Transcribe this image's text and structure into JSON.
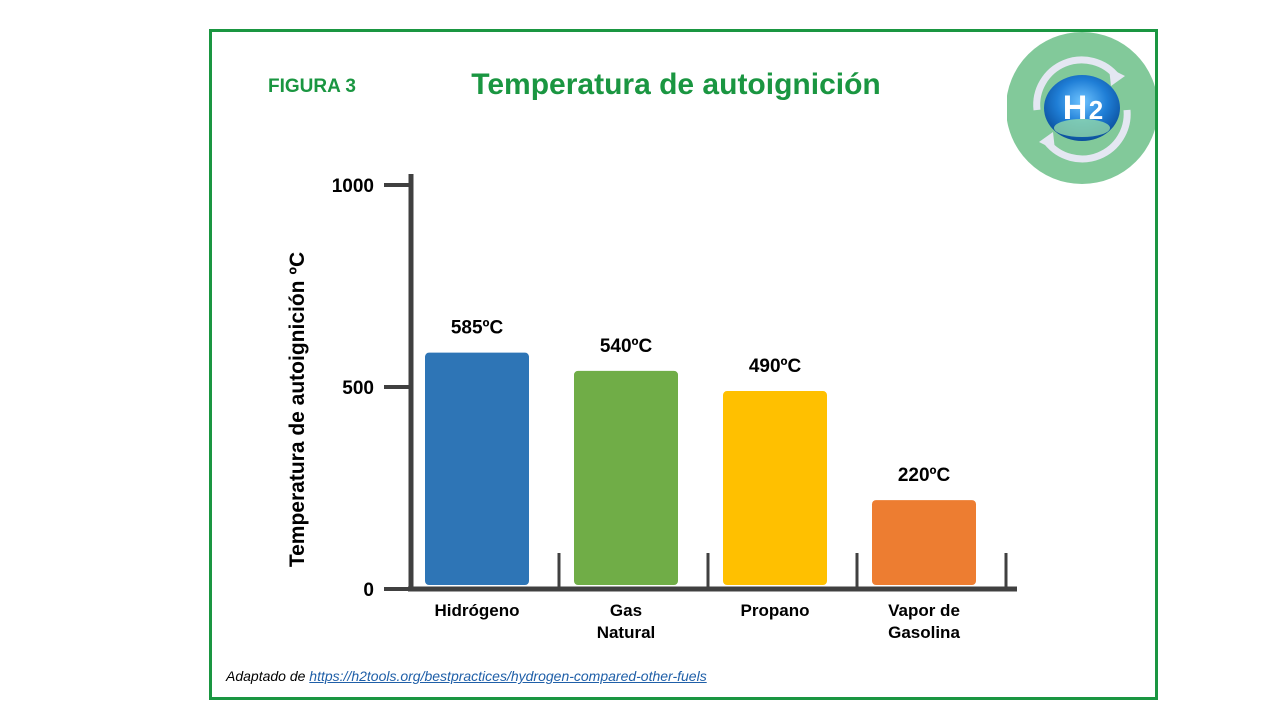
{
  "figure_label": "FIGURA 3",
  "source": {
    "prefix": "Adaptado de ",
    "link_text": "https://h2tools.org/bestpractices/hydrogen-compared-other-fuels"
  },
  "logo": {
    "text_main": "H",
    "text_sub": "2",
    "icon": "h2-cycle-icon"
  },
  "colors": {
    "accent": "#1a9641",
    "axis": "#404040",
    "bars": [
      "#2e75b6",
      "#70ad47",
      "#ffc000",
      "#ed7d31"
    ]
  },
  "chart_data": {
    "type": "bar",
    "title": "Temperatura de autoignición",
    "ylabel": "Temperatura de autoignición ºC",
    "xlabel": "",
    "ylim": [
      0,
      1000
    ],
    "yticks": [
      0,
      500,
      1000
    ],
    "grid": false,
    "categories": [
      [
        "Hidrógeno"
      ],
      [
        "Gas",
        "Natural"
      ],
      [
        "Propano"
      ],
      [
        "Vapor de",
        "Gasolina"
      ]
    ],
    "values": [
      585,
      540,
      490,
      220
    ],
    "value_labels": [
      "585ºC",
      "540ºC",
      "490ºC",
      "220ºC"
    ]
  }
}
